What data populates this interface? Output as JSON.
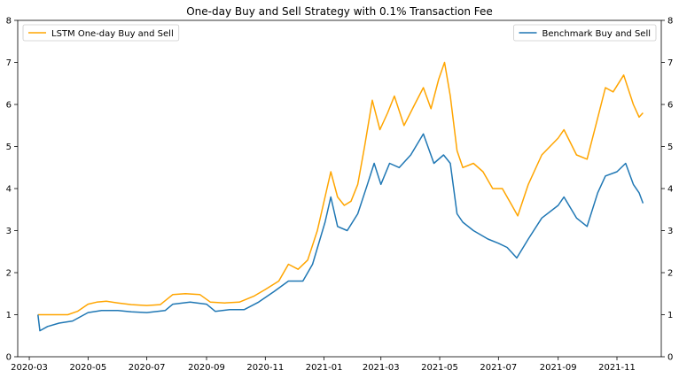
{
  "chart_data": {
    "type": "line",
    "title": "One-day Buy and Sell Strategy with 0.1% Transaction Fee",
    "xlabel": "",
    "ylabel": "",
    "x_ticks": [
      "2020-03",
      "2020-05",
      "2020-07",
      "2020-09",
      "2020-11",
      "2021-01",
      "2021-03",
      "2021-05",
      "2021-07",
      "2021-09",
      "2021-11"
    ],
    "y_ticks": [
      0,
      1,
      2,
      3,
      4,
      5,
      6,
      7,
      8
    ],
    "xlim": [
      "2020-02-18",
      "2021-12-17"
    ],
    "ylim": [
      0,
      8
    ],
    "grid": false,
    "series": [
      {
        "name": "LSTM One-day Buy and Sell",
        "color": "#ffa500",
        "axis": "left",
        "legend_position": "top-left",
        "points": [
          [
            "2020-03-10",
            1.0
          ],
          [
            "2020-03-20",
            1.0
          ],
          [
            "2020-04-01",
            1.0
          ],
          [
            "2020-04-10",
            1.0
          ],
          [
            "2020-04-20",
            1.08
          ],
          [
            "2020-05-01",
            1.25
          ],
          [
            "2020-05-10",
            1.3
          ],
          [
            "2020-05-20",
            1.32
          ],
          [
            "2020-06-01",
            1.28
          ],
          [
            "2020-06-15",
            1.24
          ],
          [
            "2020-07-01",
            1.22
          ],
          [
            "2020-07-15",
            1.24
          ],
          [
            "2020-07-28",
            1.48
          ],
          [
            "2020-08-10",
            1.5
          ],
          [
            "2020-08-25",
            1.48
          ],
          [
            "2020-09-05",
            1.3
          ],
          [
            "2020-09-20",
            1.28
          ],
          [
            "2020-10-05",
            1.3
          ],
          [
            "2020-10-20",
            1.44
          ],
          [
            "2020-11-01",
            1.6
          ],
          [
            "2020-11-15",
            1.8
          ],
          [
            "2020-11-25",
            2.2
          ],
          [
            "2020-12-05",
            2.08
          ],
          [
            "2020-12-15",
            2.3
          ],
          [
            "2020-12-25",
            3.0
          ],
          [
            "2021-01-02",
            3.8
          ],
          [
            "2021-01-08",
            4.4
          ],
          [
            "2021-01-15",
            3.8
          ],
          [
            "2021-01-22",
            3.6
          ],
          [
            "2021-01-29",
            3.7
          ],
          [
            "2021-02-05",
            4.1
          ],
          [
            "2021-02-12",
            5.0
          ],
          [
            "2021-02-20",
            6.1
          ],
          [
            "2021-02-28",
            5.4
          ],
          [
            "2021-03-08",
            5.8
          ],
          [
            "2021-03-15",
            6.2
          ],
          [
            "2021-03-25",
            5.5
          ],
          [
            "2021-04-05",
            6.0
          ],
          [
            "2021-04-14",
            6.4
          ],
          [
            "2021-04-22",
            5.9
          ],
          [
            "2021-04-30",
            6.6
          ],
          [
            "2021-05-06",
            7.0
          ],
          [
            "2021-05-12",
            6.2
          ],
          [
            "2021-05-19",
            4.9
          ],
          [
            "2021-05-25",
            4.5
          ],
          [
            "2021-06-05",
            4.6
          ],
          [
            "2021-06-15",
            4.4
          ],
          [
            "2021-06-25",
            4.0
          ],
          [
            "2021-07-05",
            4.0
          ],
          [
            "2021-07-15",
            3.6
          ],
          [
            "2021-07-21",
            3.35
          ],
          [
            "2021-08-01",
            4.1
          ],
          [
            "2021-08-15",
            4.8
          ],
          [
            "2021-09-01",
            5.2
          ],
          [
            "2021-09-07",
            5.4
          ],
          [
            "2021-09-20",
            4.8
          ],
          [
            "2021-10-01",
            4.7
          ],
          [
            "2021-10-10",
            5.5
          ],
          [
            "2021-10-20",
            6.4
          ],
          [
            "2021-10-28",
            6.3
          ],
          [
            "2021-11-08",
            6.7
          ],
          [
            "2021-11-18",
            6.0
          ],
          [
            "2021-11-24",
            5.7
          ],
          [
            "2021-11-28",
            5.8
          ]
        ]
      },
      {
        "name": "Benchmark Buy and Sell",
        "color": "#1f77b4",
        "axis": "right",
        "legend_position": "top-right",
        "points": [
          [
            "2020-03-10",
            1.0
          ],
          [
            "2020-03-12",
            0.62
          ],
          [
            "2020-03-20",
            0.72
          ],
          [
            "2020-04-01",
            0.8
          ],
          [
            "2020-04-15",
            0.85
          ],
          [
            "2020-05-01",
            1.05
          ],
          [
            "2020-05-15",
            1.1
          ],
          [
            "2020-06-01",
            1.1
          ],
          [
            "2020-06-15",
            1.07
          ],
          [
            "2020-07-01",
            1.05
          ],
          [
            "2020-07-20",
            1.1
          ],
          [
            "2020-07-28",
            1.25
          ],
          [
            "2020-08-15",
            1.3
          ],
          [
            "2020-09-01",
            1.25
          ],
          [
            "2020-09-10",
            1.08
          ],
          [
            "2020-09-25",
            1.12
          ],
          [
            "2020-10-10",
            1.12
          ],
          [
            "2020-10-25",
            1.3
          ],
          [
            "2020-11-10",
            1.55
          ],
          [
            "2020-11-25",
            1.8
          ],
          [
            "2020-12-10",
            1.8
          ],
          [
            "2020-12-20",
            2.2
          ],
          [
            "2021-01-02",
            3.2
          ],
          [
            "2021-01-08",
            3.8
          ],
          [
            "2021-01-15",
            3.1
          ],
          [
            "2021-01-25",
            3.0
          ],
          [
            "2021-02-05",
            3.4
          ],
          [
            "2021-02-15",
            4.1
          ],
          [
            "2021-02-22",
            4.6
          ],
          [
            "2021-03-01",
            4.1
          ],
          [
            "2021-03-10",
            4.6
          ],
          [
            "2021-03-20",
            4.5
          ],
          [
            "2021-04-01",
            4.8
          ],
          [
            "2021-04-14",
            5.3
          ],
          [
            "2021-04-25",
            4.6
          ],
          [
            "2021-05-05",
            4.8
          ],
          [
            "2021-05-12",
            4.6
          ],
          [
            "2021-05-19",
            3.4
          ],
          [
            "2021-05-25",
            3.2
          ],
          [
            "2021-06-05",
            3.0
          ],
          [
            "2021-06-20",
            2.8
          ],
          [
            "2021-07-01",
            2.7
          ],
          [
            "2021-07-10",
            2.6
          ],
          [
            "2021-07-20",
            2.35
          ],
          [
            "2021-08-01",
            2.8
          ],
          [
            "2021-08-15",
            3.3
          ],
          [
            "2021-09-01",
            3.6
          ],
          [
            "2021-09-07",
            3.8
          ],
          [
            "2021-09-20",
            3.3
          ],
          [
            "2021-10-01",
            3.1
          ],
          [
            "2021-10-12",
            3.9
          ],
          [
            "2021-10-20",
            4.3
          ],
          [
            "2021-11-01",
            4.4
          ],
          [
            "2021-11-10",
            4.6
          ],
          [
            "2021-11-18",
            4.1
          ],
          [
            "2021-11-24",
            3.9
          ],
          [
            "2021-11-28",
            3.65
          ]
        ]
      }
    ]
  }
}
